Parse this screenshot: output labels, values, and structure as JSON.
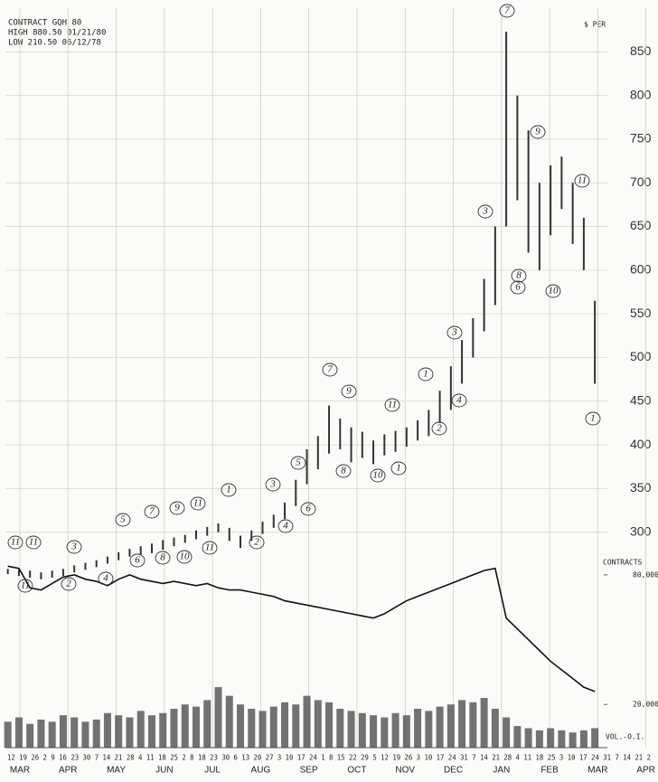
{
  "chart_data": {
    "type": "bar",
    "header": [
      "CONTRACT GQH 80",
      "HIGH 880.50 01/21/80",
      "LOW 210.50 06/12/78"
    ],
    "y_label": "$ PER",
    "y2_label": "CONTRACTS",
    "y2_note": "VOL.-O.I.",
    "date_row": "12 19 26 2 9 16 23 30 7 14 21 28 4 11 18 25 2 8 18 23 30 6 13 20 27 3 10 17 24 1 8 15 22 29 5 12 19 26 3 10 17 24 31 7 14 21 28 4 11 18 25 3 10 17 24 31 7 14 21 2",
    "x": [
      -0.25,
      -0.02,
      0.21,
      0.44,
      0.67,
      0.9,
      1.13,
      1.36,
      1.59,
      1.82,
      2.05,
      2.28,
      2.51,
      2.74,
      2.97,
      3.2,
      3.43,
      3.66,
      3.89,
      4.12,
      4.35,
      4.58,
      4.81,
      5.04,
      5.27,
      5.5,
      5.73,
      5.96,
      6.19,
      6.42,
      6.65,
      6.88,
      7.11,
      7.34,
      7.57,
      7.8,
      8.03,
      8.26,
      8.49,
      8.72,
      8.95,
      9.18,
      9.41,
      9.64,
      9.87,
      10.1,
      10.33,
      10.56,
      10.79,
      11.02,
      11.25,
      11.48,
      11.71,
      11.94
    ],
    "xlim": [
      -0.3,
      12.2
    ],
    "xticks": [
      {
        "value": 0,
        "label": "MAR"
      },
      {
        "value": 1,
        "label": "APR"
      },
      {
        "value": 2,
        "label": "MAY"
      },
      {
        "value": 3,
        "label": "JUN"
      },
      {
        "value": 4,
        "label": "JUL"
      },
      {
        "value": 5,
        "label": "AUG"
      },
      {
        "value": 6,
        "label": "SEP"
      },
      {
        "value": 7,
        "label": "OCT"
      },
      {
        "value": 8,
        "label": "NOV"
      },
      {
        "value": 9,
        "label": "DEC"
      },
      {
        "value": 10,
        "label": "JAN"
      },
      {
        "value": 11,
        "label": "FEB"
      },
      {
        "value": 12,
        "label": "MAR"
      },
      {
        "value": 13,
        "label": "APR"
      }
    ],
    "ylim": [
      220,
      900
    ],
    "yticks": [
      300,
      350,
      400,
      450,
      500,
      550,
      600,
      650,
      700,
      750,
      800,
      850
    ],
    "y2lim": [
      0,
      90000
    ],
    "y2ticks": [
      {
        "value": 20000,
        "label": "20,000"
      },
      {
        "value": 80000,
        "label": "80,000"
      }
    ],
    "grid": true,
    "price": {
      "color": "#333333",
      "low": [
        252,
        250,
        248,
        246,
        248,
        250,
        254,
        257,
        260,
        264,
        268,
        272,
        274,
        276,
        280,
        284,
        288,
        292,
        296,
        300,
        290,
        282,
        290,
        298,
        305,
        315,
        330,
        355,
        372,
        390,
        395,
        380,
        385,
        378,
        388,
        392,
        398,
        405,
        410,
        425,
        440,
        470,
        500,
        530,
        560,
        650,
        680,
        620,
        600,
        640,
        670,
        630,
        600,
        470
      ],
      "high": [
        258,
        257,
        256,
        254,
        256,
        258,
        262,
        265,
        268,
        272,
        277,
        281,
        284,
        287,
        291,
        294,
        297,
        302,
        306,
        310,
        305,
        296,
        302,
        312,
        320,
        334,
        360,
        395,
        410,
        445,
        430,
        420,
        415,
        405,
        412,
        416,
        420,
        428,
        440,
        462,
        490,
        520,
        545,
        590,
        650,
        873,
        800,
        760,
        700,
        720,
        730,
        700,
        660,
        565
      ]
    },
    "open_interest": {
      "axis": "y2",
      "color": "#111111",
      "values": [
        84000,
        83000,
        74000,
        73000,
        76000,
        79000,
        80000,
        78000,
        77000,
        75000,
        78000,
        80000,
        78000,
        77000,
        76000,
        77000,
        76000,
        75000,
        76000,
        74000,
        73000,
        73000,
        72000,
        71000,
        70000,
        68000,
        67000,
        66000,
        65000,
        64000,
        63000,
        62000,
        61000,
        60000,
        62000,
        65000,
        68000,
        70000,
        72000,
        74000,
        76000,
        78000,
        80000,
        82000,
        83000,
        60000,
        55000,
        50000,
        45000,
        40000,
        36000,
        32000,
        28000,
        26000
      ]
    },
    "volume": {
      "axis": "y2",
      "color": "#444444",
      "values": [
        12000,
        14000,
        11000,
        13000,
        12000,
        15000,
        14000,
        12000,
        13000,
        16000,
        15000,
        14000,
        17000,
        15000,
        16000,
        18000,
        20000,
        19000,
        22000,
        28000,
        24000,
        20000,
        18000,
        17000,
        19000,
        21000,
        20000,
        24000,
        22000,
        21000,
        18000,
        17000,
        16000,
        15000,
        14000,
        16000,
        15000,
        18000,
        17000,
        19000,
        20000,
        22000,
        21000,
        23000,
        18000,
        14000,
        10000,
        9000,
        8000,
        9000,
        8000,
        7000,
        8000,
        9000
      ]
    },
    "annotations": [
      "11",
      "11",
      "3",
      "11",
      "2",
      "4",
      "5",
      "7",
      "9",
      "11",
      "1",
      "6",
      "8",
      "10",
      "11",
      "2",
      "3",
      "4",
      "6",
      "5",
      "7",
      "9",
      "8",
      "11",
      "10",
      "1",
      "1",
      "3",
      "4",
      "2",
      "3",
      "6",
      "8",
      "7",
      "9",
      "10",
      "11",
      "1"
    ]
  }
}
